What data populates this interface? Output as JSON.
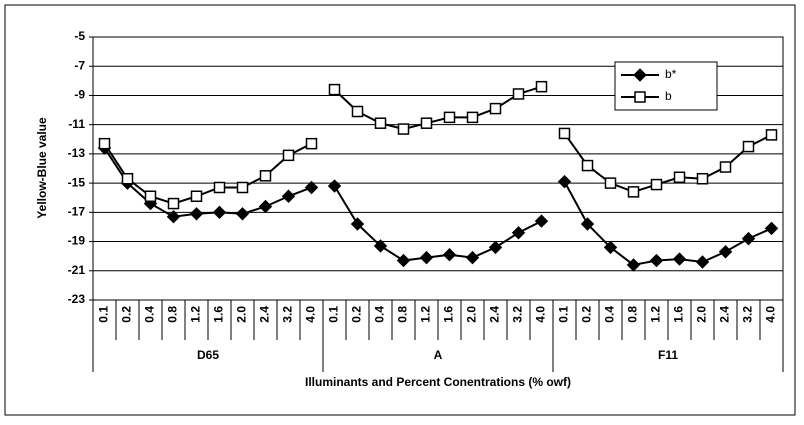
{
  "chart_data": {
    "type": "line",
    "y_label": "Yellow-Blue value",
    "x_label": "Illuminants and Percent Conentrations (% owf)",
    "groups": [
      "D65",
      "A",
      "F11"
    ],
    "categories": [
      "0.1",
      "0.2",
      "0.4",
      "0.8",
      "1.2",
      "1.6",
      "2.0",
      "2.4",
      "3.2",
      "4.0",
      "0.1",
      "0.2",
      "0.4",
      "0.8",
      "1.2",
      "1.6",
      "2.0",
      "2.4",
      "3.2",
      "4.0",
      "0.1",
      "0.2",
      "0.4",
      "0.8",
      "1.2",
      "1.6",
      "2.0",
      "2.4",
      "3.2",
      "4.0"
    ],
    "series": [
      {
        "name": "b*",
        "color": "#000000",
        "marker": "diamond",
        "values": [
          -12.6,
          -15.0,
          -16.4,
          -17.3,
          -17.1,
          -17.0,
          -17.1,
          -16.6,
          -15.9,
          -15.3,
          -15.2,
          -17.8,
          -19.3,
          -20.3,
          -20.1,
          -19.9,
          -20.1,
          -19.4,
          -18.4,
          -17.6,
          -14.9,
          -17.8,
          -19.4,
          -20.6,
          -20.3,
          -20.2,
          -20.4,
          -19.7,
          -18.8,
          -18.1
        ]
      },
      {
        "name": "b",
        "color": "#000000",
        "marker": "square",
        "values": [
          -12.3,
          -14.7,
          -15.9,
          -16.4,
          -15.9,
          -15.3,
          -15.3,
          -14.5,
          -13.1,
          -12.3,
          -8.6,
          -10.1,
          -10.9,
          -11.3,
          -10.9,
          -10.5,
          -10.5,
          -9.9,
          -8.9,
          -8.4,
          -11.6,
          -13.8,
          -15.0,
          -15.6,
          -15.1,
          -14.6,
          -14.7,
          -13.9,
          -12.5,
          -11.7
        ]
      }
    ],
    "ylim": [
      -23,
      -5
    ],
    "yticks": [
      -23,
      -21,
      -19,
      -17,
      -15,
      -13,
      -11,
      -9,
      -7,
      -5
    ],
    "grid": true,
    "legend": "top-right"
  }
}
